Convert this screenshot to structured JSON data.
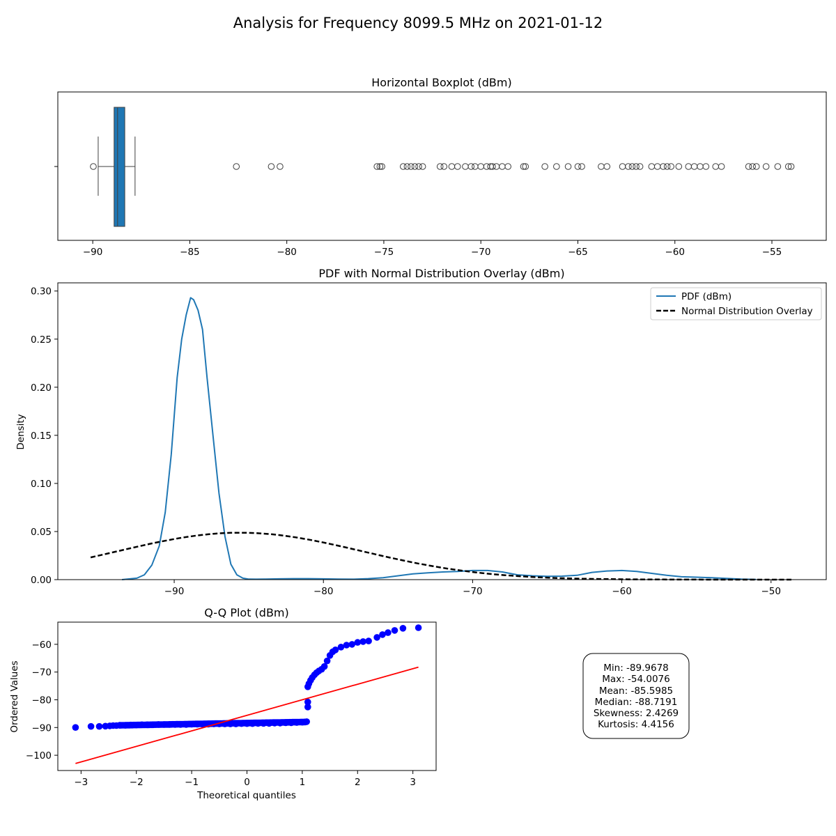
{
  "figure": {
    "title": "Analysis for Frequency 8099.5 MHz on 2021-01-12"
  },
  "colors": {
    "box_fill": "#1f77b4",
    "pdf_line": "#1f77b4",
    "normal_line": "#000000",
    "qq_points": "#0000ff",
    "qq_line": "#ff0000"
  },
  "chart_data": [
    {
      "id": "boxplot",
      "type": "box",
      "title": "Horizontal Boxplot (dBm)",
      "xlabel": "",
      "ylabel": "",
      "xlim": [
        -91.8,
        -52.2
      ],
      "xticks": [
        -90,
        -85,
        -80,
        -75,
        -70,
        -65,
        -60,
        -55
      ],
      "xtick_labels": [
        "−90",
        "−85",
        "−80",
        "−75",
        "−70",
        "−65",
        "−60",
        "−55"
      ],
      "box": {
        "q1": -88.9,
        "median": -88.72,
        "q3": -88.35,
        "whisker_low": -89.72,
        "whisker_high": -87.82
      },
      "outliers": [
        -89.97,
        -82.6,
        -80.8,
        -80.35,
        -75.35,
        -75.2,
        -75.1,
        -74.0,
        -73.8,
        -73.6,
        -73.4,
        -73.2,
        -73.0,
        -72.1,
        -71.9,
        -71.5,
        -71.2,
        -70.8,
        -70.5,
        -70.3,
        -70.0,
        -69.7,
        -69.5,
        -69.4,
        -69.2,
        -68.9,
        -68.6,
        -67.8,
        -67.7,
        -66.7,
        -66.1,
        -65.5,
        -65.0,
        -64.8,
        -63.8,
        -63.5,
        -62.7,
        -62.4,
        -62.2,
        -62.0,
        -61.8,
        -61.2,
        -60.9,
        -60.6,
        -60.4,
        -60.2,
        -59.8,
        -59.3,
        -59.0,
        -58.7,
        -58.4,
        -57.9,
        -57.6,
        -56.2,
        -56.0,
        -55.8,
        -55.3,
        -54.7,
        -54.15,
        -54.01
      ]
    },
    {
      "id": "pdf",
      "type": "line",
      "title": "PDF with Normal Distribution Overlay (dBm)",
      "xlabel": "",
      "ylabel": "Density",
      "xlim": [
        -97.8,
        -46.3
      ],
      "ylim": [
        0,
        0.3085
      ],
      "xticks": [
        -90,
        -80,
        -70,
        -60,
        -50
      ],
      "xtick_labels": [
        "−90",
        "−80",
        "−70",
        "−60",
        "−50"
      ],
      "yticks": [
        0,
        0.05,
        0.1,
        0.15,
        0.2,
        0.25,
        0.3
      ],
      "ytick_labels": [
        "0.00",
        "0.05",
        "0.10",
        "0.15",
        "0.20",
        "0.25",
        "0.30"
      ],
      "legend": {
        "location": "top-right",
        "entries": [
          "PDF (dBm)",
          "Normal Distribution Overlay"
        ]
      },
      "series": [
        {
          "name": "PDF (dBm)",
          "style": "solid",
          "x": [
            -93.5,
            -92.5,
            -92.0,
            -91.5,
            -91.0,
            -90.6,
            -90.2,
            -89.8,
            -89.5,
            -89.2,
            -88.9,
            -88.7,
            -88.4,
            -88.1,
            -87.8,
            -87.4,
            -87.0,
            -86.6,
            -86.2,
            -85.8,
            -85.4,
            -85.0,
            -84.5,
            -84.0,
            -83.0,
            -82.0,
            -81.0,
            -80.0,
            -79.0,
            -78.0,
            -77.0,
            -76.0,
            -75.0,
            -74.0,
            -73.0,
            -72.0,
            -71.0,
            -70.0,
            -69.0,
            -68.0,
            -67.0,
            -66.0,
            -65.0,
            -64.0,
            -63.0,
            -62.0,
            -61.0,
            -60.0,
            -59.0,
            -58.0,
            -57.0,
            -56.0,
            -55.0,
            -54.0,
            -53.0,
            -52.0,
            -51.0
          ],
          "y": [
            0.0,
            0.0015,
            0.005,
            0.015,
            0.035,
            0.07,
            0.13,
            0.21,
            0.25,
            0.275,
            0.293,
            0.291,
            0.28,
            0.26,
            0.21,
            0.15,
            0.09,
            0.045,
            0.016,
            0.005,
            0.0015,
            0.0005,
            0.0004,
            0.0005,
            0.0008,
            0.001,
            0.001,
            0.0008,
            0.0005,
            0.0004,
            0.001,
            0.002,
            0.004,
            0.006,
            0.007,
            0.008,
            0.0085,
            0.0095,
            0.0095,
            0.008,
            0.005,
            0.004,
            0.0035,
            0.0036,
            0.0045,
            0.0075,
            0.009,
            0.0095,
            0.0085,
            0.0065,
            0.0045,
            0.003,
            0.0025,
            0.002,
            0.0012,
            0.0005,
            0.0002
          ]
        },
        {
          "name": "Normal Distribution Overlay",
          "style": "dashed",
          "mean": -85.5985,
          "std": 8.18,
          "x_range": [
            -95.6,
            -48.6
          ]
        }
      ]
    },
    {
      "id": "qq",
      "type": "scatter",
      "title": "Q-Q Plot (dBm)",
      "xlabel": "Theoretical quantiles",
      "ylabel": "Ordered Values",
      "xlim": [
        -3.42,
        3.42
      ],
      "ylim": [
        -105.5,
        -52.0
      ],
      "xticks": [
        -3,
        -2,
        -1,
        0,
        1,
        2,
        3
      ],
      "xtick_labels": [
        "−3",
        "−2",
        "−1",
        "0",
        "1",
        "2",
        "3"
      ],
      "yticks": [
        -100,
        -90,
        -80,
        -70,
        -60
      ],
      "ytick_labels": [
        "−100",
        "−90",
        "−80",
        "−70",
        "−60"
      ],
      "points_x": [
        -3.1,
        -2.82,
        -2.67,
        -2.56,
        -2.48,
        -2.42,
        -2.36,
        -2.3,
        -2.2,
        -2.1,
        -2.0,
        -1.9,
        -1.8,
        -1.7,
        -1.6,
        -1.5,
        -1.4,
        -1.3,
        -1.2,
        -1.1,
        -1.0,
        -0.9,
        -0.8,
        -0.7,
        -0.6,
        -0.5,
        -0.4,
        -0.3,
        -0.2,
        -0.1,
        0.0,
        0.1,
        0.2,
        0.3,
        0.4,
        0.5,
        0.6,
        0.7,
        0.8,
        0.9,
        1.0,
        1.05,
        1.08,
        1.1,
        1.1,
        1.1,
        1.12,
        1.15,
        1.18,
        1.22,
        1.26,
        1.3,
        1.35,
        1.4,
        1.45,
        1.5,
        1.55,
        1.6,
        1.7,
        1.8,
        1.9,
        2.0,
        2.1,
        2.2,
        2.35,
        2.45,
        2.55,
        2.67,
        2.82,
        3.1
      ],
      "points_y": [
        -89.97,
        -89.6,
        -89.6,
        -89.5,
        -89.4,
        -89.3,
        -89.3,
        -89.2,
        -89.2,
        -89.1,
        -89.1,
        -89.0,
        -89.0,
        -89.0,
        -88.9,
        -88.9,
        -88.9,
        -88.9,
        -88.9,
        -88.9,
        -88.8,
        -88.8,
        -88.8,
        -88.8,
        -88.7,
        -88.7,
        -88.7,
        -88.7,
        -88.7,
        -88.6,
        -88.6,
        -88.6,
        -88.5,
        -88.5,
        -88.5,
        -88.4,
        -88.4,
        -88.3,
        -88.3,
        -88.2,
        -88.1,
        -88.0,
        -87.9,
        -82.6,
        -80.8,
        -75.3,
        -74.2,
        -73.0,
        -72.0,
        -71.0,
        -70.2,
        -69.6,
        -69.0,
        -68.0,
        -66.0,
        -64.0,
        -62.7,
        -62.0,
        -61.0,
        -60.3,
        -60.0,
        -59.3,
        -59.0,
        -58.8,
        -57.5,
        -56.5,
        -55.8,
        -55.0,
        -54.2,
        -54.01
      ],
      "fit_line": {
        "x": [
          -3.1,
          3.1
        ],
        "y": [
          -102.97,
          -68.23
        ]
      }
    }
  ],
  "stats_box": {
    "lines": [
      "Min: -89.9678",
      "Max: -54.0076",
      "Mean: -85.5985",
      "Median: -88.7191",
      "Skewness: 2.4269",
      "Kurtosis: 4.4156"
    ]
  }
}
